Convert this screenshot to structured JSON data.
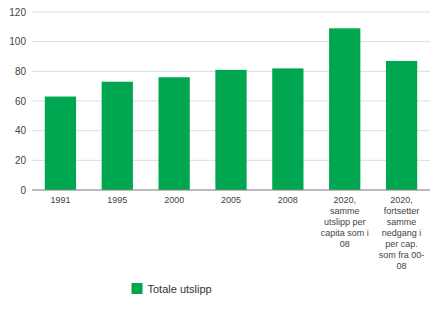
{
  "chart_data": {
    "type": "bar",
    "categories": [
      "1991",
      "1995",
      "2000",
      "2005",
      "2008",
      "2020,\nsamme\nutslipp per\ncapita som i\n08",
      "2020,\nfortsetter\nsamme\nnedgang i\nper cap.\nsom fra 00-\n08"
    ],
    "series": [
      {
        "name": "Totale utslipp",
        "color": "#00a650",
        "values": [
          63,
          73,
          76,
          81,
          82,
          109,
          87
        ]
      }
    ],
    "ylim": [
      0,
      120
    ],
    "yticks": [
      0,
      20,
      40,
      60,
      80,
      100,
      120
    ],
    "grid": true,
    "legend": "bottom"
  }
}
